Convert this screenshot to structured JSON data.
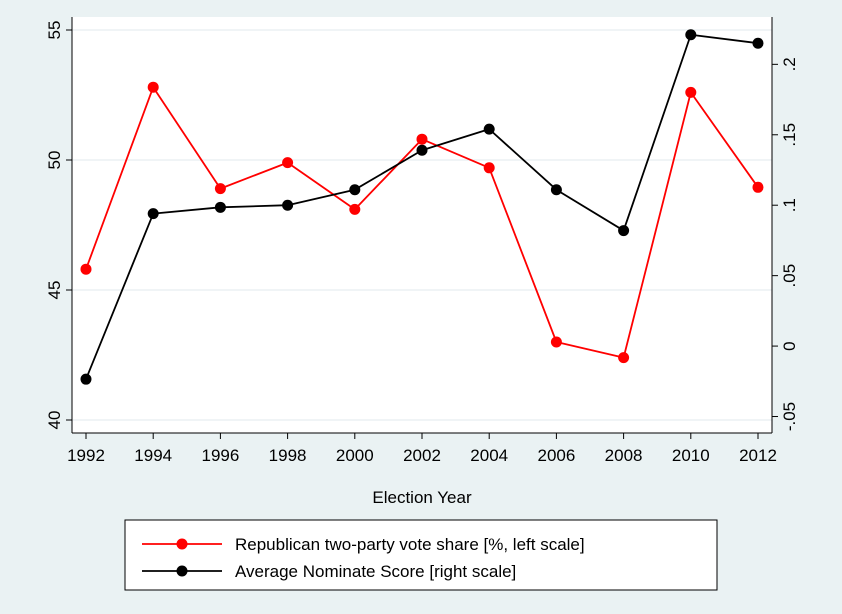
{
  "chart_data": {
    "type": "line",
    "title": "",
    "xlabel": "Election Year",
    "x": [
      1992,
      1994,
      1996,
      1998,
      2000,
      2002,
      2004,
      2006,
      2008,
      2010,
      2012
    ],
    "xticks": [
      "1992",
      "1994",
      "1996",
      "1998",
      "2000",
      "2002",
      "2004",
      "2006",
      "2008",
      "2010",
      "2012"
    ],
    "left_axis": {
      "range": [
        39.5,
        55.5
      ],
      "ticks": [
        40,
        45,
        50,
        55
      ],
      "tick_labels": [
        "40",
        "45",
        "50",
        "55"
      ]
    },
    "right_axis": {
      "range": [
        -0.0617,
        0.2336
      ],
      "ticks": [
        -0.05,
        0,
        0.05,
        0.1,
        0.15,
        0.2
      ],
      "tick_labels": [
        "-.05",
        "0",
        ".05",
        ".1",
        ".15",
        ".2"
      ]
    },
    "grid": true,
    "legend_position": "bottom",
    "series": [
      {
        "name": "Republican two-party vote share [%, left scale]",
        "axis": "left",
        "color": "#ff0000",
        "values": [
          45.8,
          52.8,
          48.9,
          49.9,
          48.1,
          50.8,
          49.7,
          43.0,
          42.4,
          52.6,
          48.95
        ]
      },
      {
        "name": "Average Nominate Score [right scale]",
        "axis": "right",
        "color": "#000000",
        "values": [
          -0.0235,
          0.094,
          0.0985,
          0.1,
          0.111,
          0.139,
          0.154,
          0.111,
          0.082,
          0.221,
          0.215
        ]
      }
    ]
  }
}
